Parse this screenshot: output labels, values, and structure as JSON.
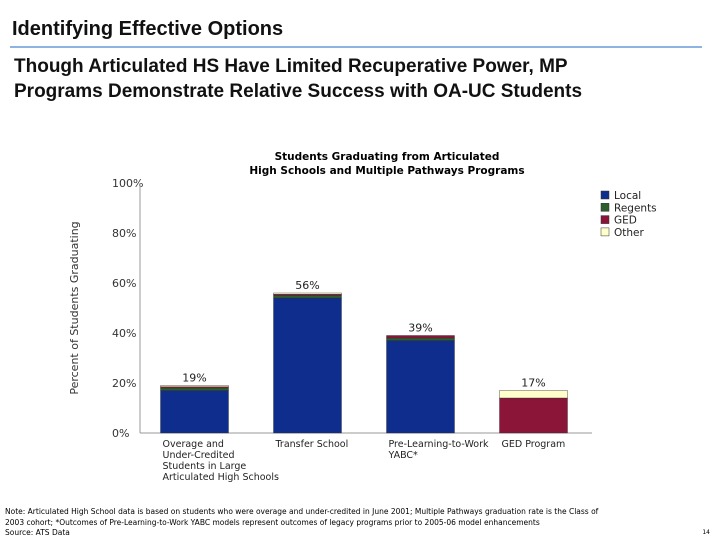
{
  "header": {
    "title": "Identifying Effective Options",
    "subtitle_line1": "Though Articulated HS Have Limited Recuperative Power, MP",
    "subtitle_line2": "Programs Demonstrate Relative Success with OA-UC Students"
  },
  "chart_data": {
    "type": "bar",
    "stacked": true,
    "title_line1": "Students Graduating from Articulated",
    "title_line2": "High Schools and Multiple Pathways Programs",
    "ylabel": "Percent of Students Graduating",
    "ylim": [
      0,
      100
    ],
    "yticks": [
      "0%",
      "20%",
      "40%",
      "60%",
      "80%",
      "100%"
    ],
    "categories": [
      [
        "Overage and",
        "Under-Credited",
        "Students in Large",
        "Articulated High Schools"
      ],
      [
        "Transfer School"
      ],
      [
        "Pre-Learning-to-Work",
        "YABC*"
      ],
      [
        "GED Program"
      ]
    ],
    "series": [
      {
        "name": "Local",
        "color": "#0f2d8c",
        "values": [
          17,
          54,
          37,
          0
        ]
      },
      {
        "name": "Regents",
        "color": "#2e5e2e",
        "values": [
          1,
          1,
          1,
          0
        ]
      },
      {
        "name": "GED",
        "color": "#8b1538",
        "values": [
          0.5,
          0.5,
          1,
          14
        ]
      },
      {
        "name": "Other",
        "color": "#ffffcc",
        "values": [
          0.5,
          0.5,
          0,
          3
        ]
      }
    ],
    "totals": [
      19,
      56,
      39,
      17
    ],
    "total_labels": [
      "19%",
      "56%",
      "39%",
      "17%"
    ],
    "legend_position": "right"
  },
  "footnote": {
    "line1": "Note: Articulated High School data is based on students who were overage and under-credited in June 2001; Multiple Pathways graduation rate is the Class of",
    "line2": "2003 cohort; *Outcomes of Pre-Learning-to-Work YABC models represent outcomes of legacy programs prior to 2005-06 model enhancements",
    "line3": "Source: ATS Data"
  },
  "page_number": "14"
}
